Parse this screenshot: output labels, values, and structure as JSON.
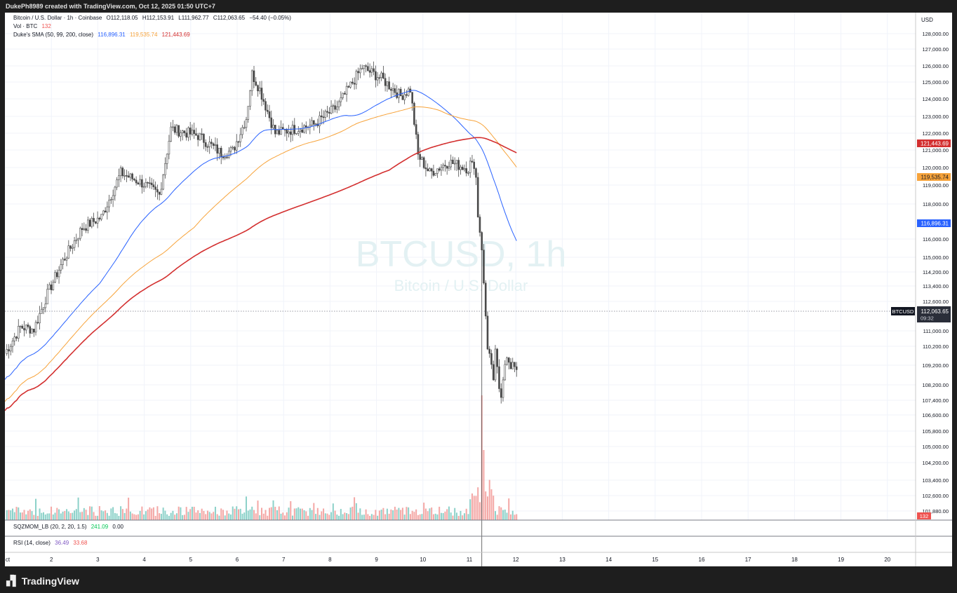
{
  "header": {
    "created_text": "DukePh8989 created with TradingView.com, Oct 12, 2025 01:50 UTC+7"
  },
  "legend": {
    "symbol_line": {
      "name": "Bitcoin / U.S. Dollar · 1h · Coinbase",
      "o": "O112,118.05",
      "h": "H112,153.91",
      "l": "L111,962.77",
      "c": "C112,063.65",
      "chg": "−54.40 (−0.05%)"
    },
    "vol_line": {
      "label": "Vol · BTC",
      "value": "132"
    },
    "sma_line": {
      "label": "Duke's SMA (50, 99, 200, close)",
      "v50": "116,896.31",
      "v99": "119,535.74",
      "v200": "121,443.69"
    },
    "sqz_line": {
      "label": "SQZMOM_LB (20, 2, 20, 1.5)",
      "v1": "241.09",
      "v2": "0.00"
    },
    "rsi_line": {
      "label": "RSI (14, close)",
      "v1": "36.49",
      "v2": "33.68"
    }
  },
  "watermark": {
    "symbol": "BTCUSD, 1h",
    "name": "Bitcoin / U.S. Dollar"
  },
  "price_axis": {
    "currency": "USD",
    "ticks": [
      "128,000.00",
      "127,000.00",
      "126,000.00",
      "125,000.00",
      "124,000.00",
      "123,000.00",
      "122,000.00",
      "121,000.00",
      "120,000.00",
      "119,000.00",
      "118,000.00",
      "116,000.00",
      "115,000.00",
      "114,200.00",
      "113,400.00",
      "112,600.00",
      "111,000.00",
      "110,200.00",
      "109,200.00",
      "108,200.00",
      "107,400.00",
      "106,600.00",
      "105,800.00",
      "105,000.00",
      "104,200.00",
      "103,400.00",
      "102,600.00",
      "101,880.00"
    ]
  },
  "labels": {
    "sma200": "121,443.69",
    "sma99": "119,535.74",
    "sma50": "116,896.31",
    "last_symbol": "BTCUSD",
    "last_price": "112,063.65",
    "countdown": "09:32",
    "vol": "132"
  },
  "time_axis": {
    "ticks": [
      "ct",
      "2",
      "3",
      "4",
      "5",
      "6",
      "7",
      "8",
      "9",
      "10",
      "11",
      "12",
      "13",
      "14",
      "15",
      "16",
      "17",
      "18",
      "19",
      "20"
    ]
  },
  "colors": {
    "up": "#26a69a",
    "down": "#ef5350",
    "candle": "#4a4a4a",
    "sma50": "#2962ff",
    "sma99": "#f7a33a",
    "sma200": "#d32f2f",
    "watermark": "#e3f1f3"
  },
  "footer": {
    "brand": "TradingView"
  },
  "chart_data": {
    "type": "line",
    "title": "BTCUSD, 1h",
    "x": [
      "1",
      "2",
      "3",
      "4",
      "5",
      "6",
      "7",
      "8",
      "9",
      "10",
      "11",
      "12"
    ],
    "series": [
      {
        "name": "Close",
        "values": [
          113600,
          116800,
          120500,
          122800,
          122000,
          122800,
          125800,
          121500,
          122300,
          121800,
          112500,
          112063.65
        ]
      }
    ],
    "ylim": [
      101400,
      128400
    ],
    "ylabel": "USD"
  }
}
